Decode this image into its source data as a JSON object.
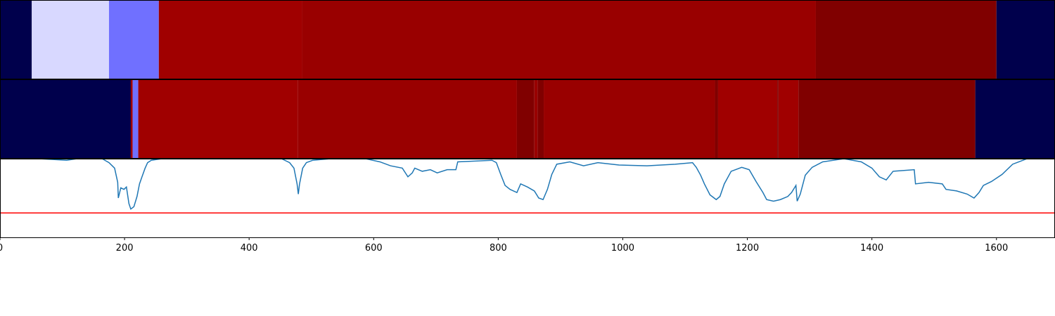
{
  "chart_data": [
    {
      "type": "strip",
      "xlim": [
        0,
        1694
      ],
      "segments": [
        {
          "start": 0,
          "end": 51,
          "color": "#00004c"
        },
        {
          "start": 51,
          "end": 175,
          "color": "#d8d8ff"
        },
        {
          "start": 175,
          "end": 255,
          "color": "#7070ff"
        },
        {
          "start": 255,
          "end": 485,
          "color": "#a00000"
        },
        {
          "start": 485,
          "end": 1310,
          "color": "#990000"
        },
        {
          "start": 1310,
          "end": 1600,
          "color": "#800000"
        },
        {
          "start": 1600,
          "end": 1694,
          "color": "#00004c"
        }
      ]
    },
    {
      "type": "strip",
      "xlim": [
        0,
        1694
      ],
      "segments": [
        {
          "start": 0,
          "end": 210,
          "color": "#00004c"
        },
        {
          "start": 210,
          "end": 213,
          "color": "#a00000"
        },
        {
          "start": 213,
          "end": 222,
          "color": "#7070ff"
        },
        {
          "start": 222,
          "end": 478,
          "color": "#a00000"
        },
        {
          "start": 478,
          "end": 830,
          "color": "#990000"
        },
        {
          "start": 830,
          "end": 858,
          "color": "#800000"
        },
        {
          "start": 858,
          "end": 863,
          "color": "#990000"
        },
        {
          "start": 863,
          "end": 873,
          "color": "#800000"
        },
        {
          "start": 873,
          "end": 1148,
          "color": "#990000"
        },
        {
          "start": 1148,
          "end": 1153,
          "color": "#800000"
        },
        {
          "start": 1153,
          "end": 1248,
          "color": "#a00000"
        },
        {
          "start": 1248,
          "end": 1250,
          "color": "#800000"
        },
        {
          "start": 1250,
          "end": 1282,
          "color": "#a00000"
        },
        {
          "start": 1282,
          "end": 1566,
          "color": "#800000"
        },
        {
          "start": 1566,
          "end": 1694,
          "color": "#00004c"
        }
      ]
    },
    {
      "type": "line",
      "xlim": [
        0,
        1694
      ],
      "ylim": [
        0,
        1
      ],
      "xticks": [
        0,
        200,
        400,
        600,
        800,
        1000,
        1200,
        1400,
        1600
      ],
      "threshold": 0.31,
      "threshold_color": "#ff0000",
      "series": [
        {
          "color": "#1f77b4",
          "x": [
            62,
            85,
            107,
            124,
            164,
            175,
            184,
            189,
            190,
            194,
            199,
            203,
            207,
            210,
            215,
            220,
            224,
            228,
            233,
            237,
            243,
            260,
            339,
            452,
            465,
            472,
            477,
            479,
            481,
            486,
            492,
            502,
            531,
            587,
            610,
            627,
            646,
            655,
            662,
            666,
            678,
            691,
            702,
            718,
            732,
            735,
            790,
            797,
            804,
            811,
            819,
            830,
            836,
            847,
            858,
            865,
            872,
            879,
            886,
            894,
            915,
            937,
            960,
            994,
            1039,
            1084,
            1112,
            1118,
            1125,
            1131,
            1140,
            1150,
            1156,
            1163,
            1174,
            1191,
            1203,
            1214,
            1225,
            1231,
            1242,
            1253,
            1265,
            1271,
            1278,
            1280,
            1285,
            1293,
            1304,
            1321,
            1355,
            1383,
            1400,
            1412,
            1423,
            1434,
            1468,
            1470,
            1491,
            1513,
            1519,
            1536,
            1553,
            1564,
            1572,
            1579,
            1592,
            1609,
            1626,
            1649,
            1694
          ],
          "values": [
            1.0,
            0.99,
            0.98,
            1.0,
            1.0,
            0.95,
            0.88,
            0.7,
            0.5,
            0.63,
            0.61,
            0.64,
            0.43,
            0.36,
            0.39,
            0.52,
            0.68,
            0.77,
            0.88,
            0.95,
            0.98,
            1.0,
            1.0,
            1.0,
            0.95,
            0.88,
            0.68,
            0.55,
            0.68,
            0.88,
            0.95,
            0.98,
            1.0,
            1.0,
            0.96,
            0.91,
            0.88,
            0.77,
            0.82,
            0.88,
            0.84,
            0.86,
            0.82,
            0.86,
            0.86,
            0.96,
            0.98,
            0.95,
            0.8,
            0.66,
            0.61,
            0.57,
            0.68,
            0.64,
            0.59,
            0.5,
            0.48,
            0.61,
            0.8,
            0.93,
            0.96,
            0.91,
            0.95,
            0.92,
            0.91,
            0.93,
            0.95,
            0.89,
            0.79,
            0.68,
            0.54,
            0.48,
            0.52,
            0.68,
            0.84,
            0.89,
            0.86,
            0.71,
            0.57,
            0.48,
            0.46,
            0.48,
            0.52,
            0.57,
            0.66,
            0.46,
            0.55,
            0.79,
            0.89,
            0.96,
            1.0,
            0.96,
            0.88,
            0.77,
            0.73,
            0.84,
            0.86,
            0.68,
            0.7,
            0.68,
            0.61,
            0.59,
            0.55,
            0.5,
            0.57,
            0.66,
            0.71,
            0.8,
            0.93,
            1.0,
            1.0
          ]
        }
      ]
    }
  ]
}
